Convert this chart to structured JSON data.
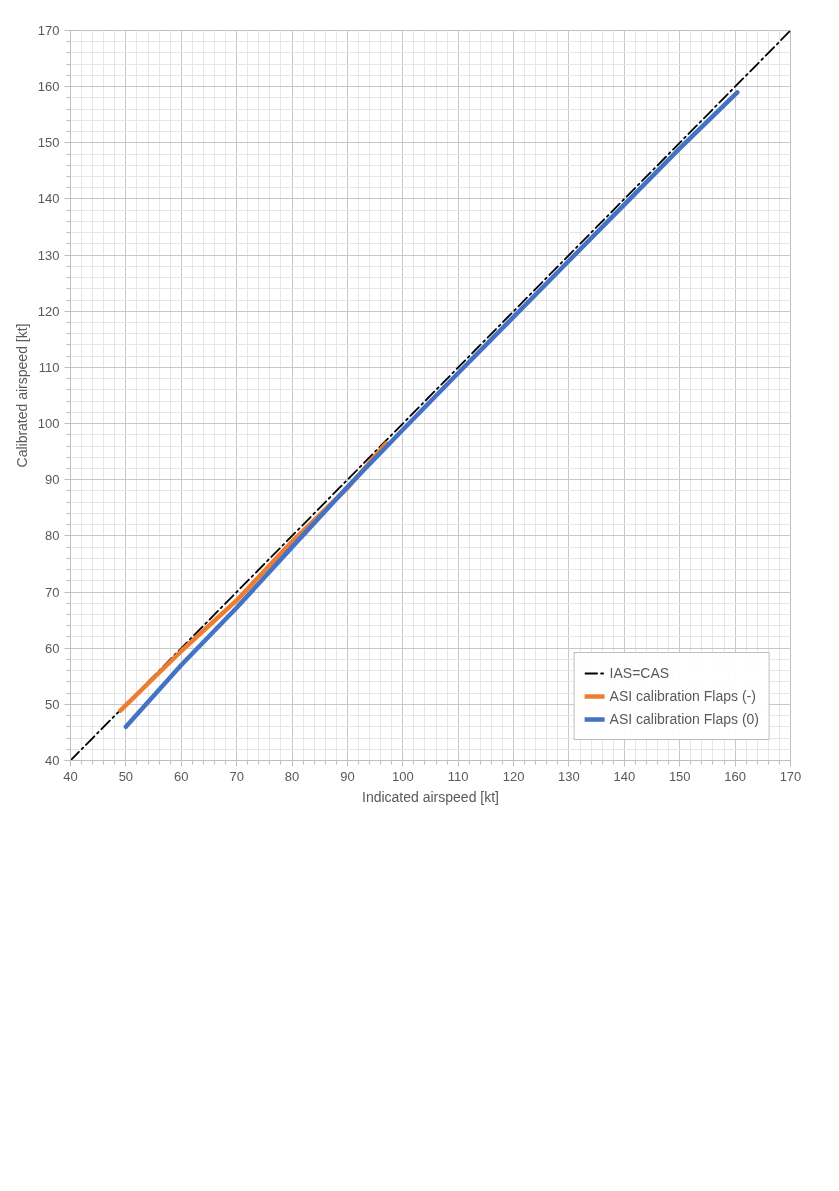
{
  "chart_data": {
    "type": "line",
    "xlabel": "Indicated airspeed [kt]",
    "ylabel": "Calibrated airspeed [kt]",
    "xlim": [
      40,
      170
    ],
    "ylim": [
      40,
      170
    ],
    "xticks": [
      40,
      50,
      60,
      70,
      80,
      90,
      100,
      110,
      120,
      130,
      140,
      150,
      160,
      170
    ],
    "yticks": [
      40,
      50,
      60,
      70,
      80,
      90,
      100,
      110,
      120,
      130,
      140,
      150,
      160,
      170
    ],
    "grid": true,
    "legend": "bottom right",
    "series": [
      {
        "name": "IAS=CAS",
        "color": "#000000",
        "line_style": "dashdot",
        "x": [
          40,
          170
        ],
        "values": [
          40,
          170
        ]
      },
      {
        "name": "ASI calibration Flaps (-)",
        "color": "#ed7d31",
        "x": [
          49,
          60,
          70,
          80,
          90,
          97
        ],
        "values": [
          48.9,
          59.5,
          68.5,
          79,
          88.5,
          96.5
        ]
      },
      {
        "name": "ASI calibration Flaps (0)",
        "color": "#4472c4",
        "x": [
          50,
          60,
          70,
          80,
          90,
          100,
          110,
          120,
          130,
          140,
          150,
          160.4
        ],
        "values": [
          46,
          57,
          67.2,
          78,
          88.7,
          98.9,
          109,
          119,
          129,
          139,
          149,
          159
        ]
      }
    ]
  }
}
